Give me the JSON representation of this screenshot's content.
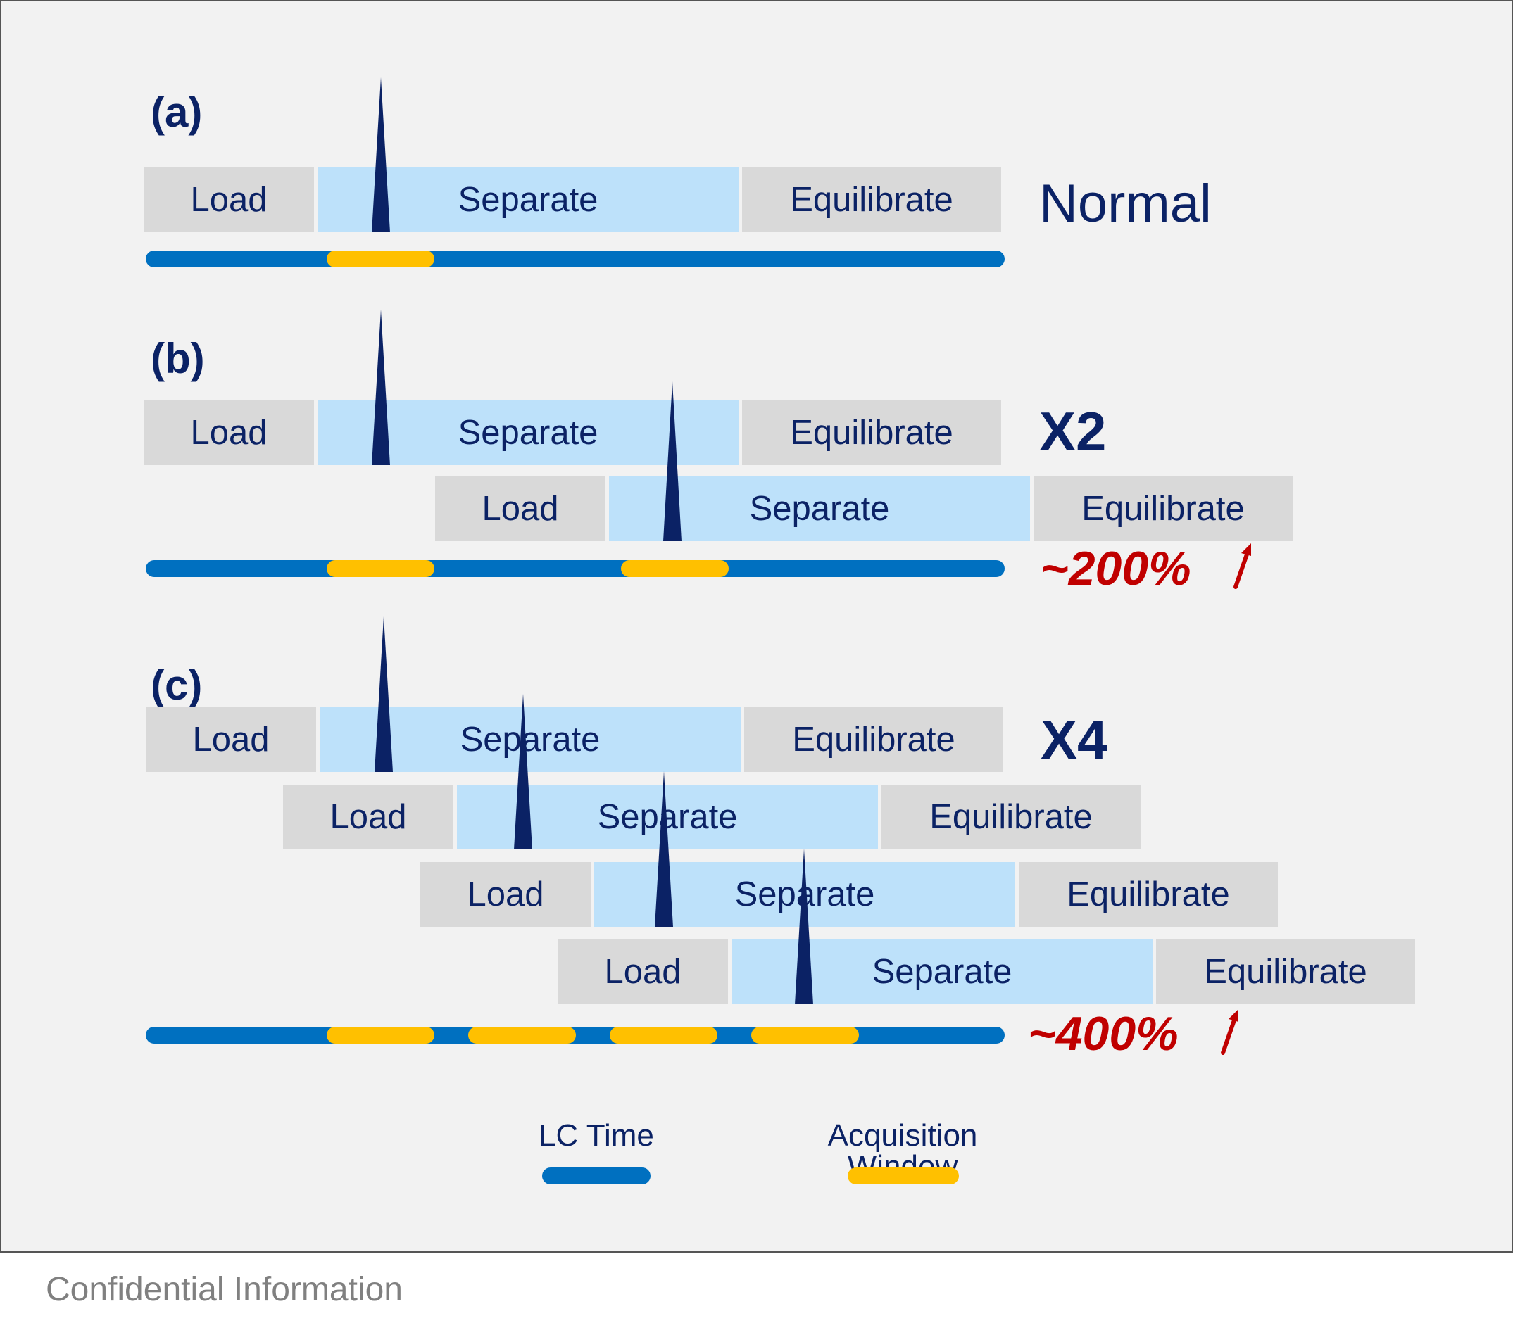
{
  "colors": {
    "load_eq_fill": "#d9d9d9",
    "separate_fill": "#bde1fa",
    "lc_time": "#0070c0",
    "acquisition_window": "#ffc000",
    "text_dark": "#0b2265",
    "increase_red": "#c00000",
    "background": "#f2f2f2"
  },
  "segments": {
    "load": "Load",
    "separate": "Separate",
    "equilibrate": "Equilibrate"
  },
  "panels": {
    "a": {
      "label": "(a)",
      "multiplier": "Normal"
    },
    "b": {
      "label": "(b)",
      "multiplier": "X2",
      "increase": "~200%"
    },
    "c": {
      "label": "(c)",
      "multiplier": "X4",
      "increase": "~400%"
    }
  },
  "legend": {
    "lc_time": "LC Time",
    "acquisition_window": "Acquisition Window"
  },
  "icons": [
    "peak-icon",
    "up-arrow-icon"
  ],
  "footer": "Confidential Information"
}
